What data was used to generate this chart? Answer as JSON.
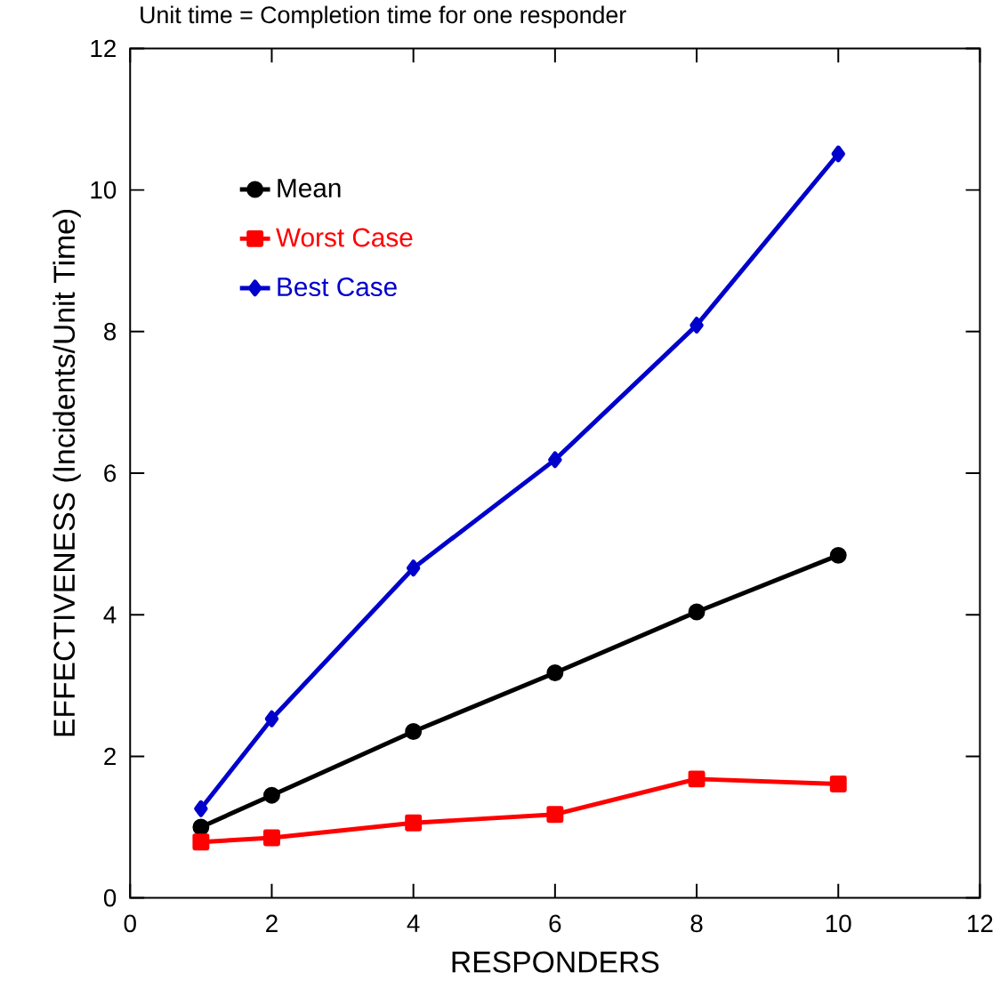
{
  "chart_data": {
    "type": "line",
    "title": "Unit time = Completion time for one responder",
    "xlabel": "RESPONDERS",
    "ylabel": "EFFECTIVENESS (Incidents/Unit Time)",
    "x": [
      1,
      2,
      4,
      6,
      8,
      10
    ],
    "series": [
      {
        "name": "Mean",
        "color": "#000000",
        "marker": "circle",
        "values": [
          1.0,
          1.45,
          2.35,
          3.18,
          4.04,
          4.84
        ]
      },
      {
        "name": "Worst Case",
        "color": "#ff0000",
        "marker": "square",
        "values": [
          0.79,
          0.85,
          1.06,
          1.18,
          1.68,
          1.61
        ]
      },
      {
        "name": "Best Case",
        "color": "#0000cc",
        "marker": "diamond",
        "values": [
          1.26,
          2.53,
          4.66,
          6.19,
          8.09,
          10.51
        ]
      }
    ],
    "xlim": [
      0,
      12
    ],
    "xticks": [
      0,
      2,
      4,
      6,
      8,
      10,
      12
    ],
    "ylim": [
      0,
      12
    ],
    "yticks": [
      0,
      2,
      4,
      6,
      8,
      10,
      12
    ],
    "grid": false,
    "legend": "top left",
    "line_style": "solid"
  }
}
